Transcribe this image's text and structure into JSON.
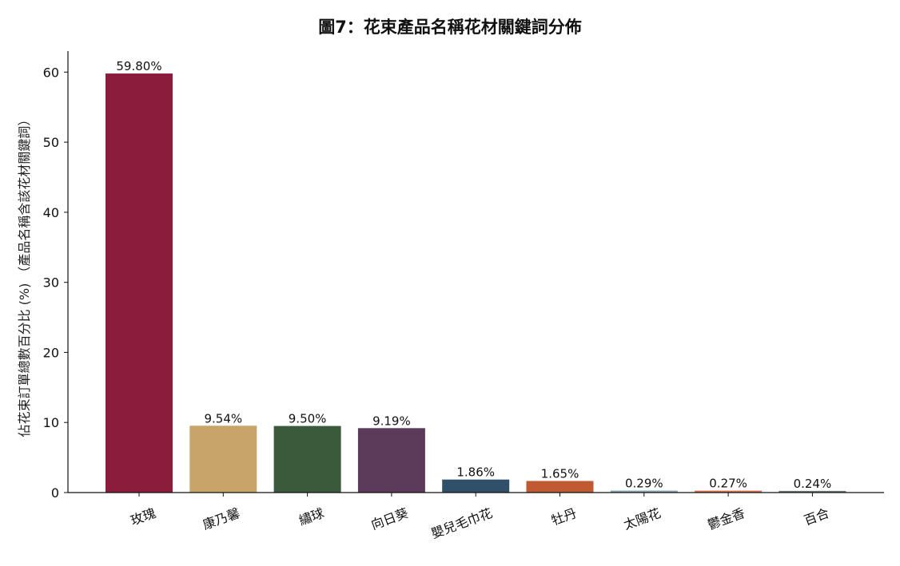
{
  "chart_data": {
    "type": "bar",
    "title": "圖7：花束產品名稱花材關鍵詞分佈",
    "xlabel": "",
    "ylabel": "佔花束訂單總數百分比 (%) （產品名稱含該花材關鍵詞）",
    "ylim": [
      0,
      63
    ],
    "yticks": [
      0,
      10,
      20,
      30,
      40,
      50,
      60
    ],
    "grid": false,
    "categories": [
      "玫瑰",
      "康乃馨",
      "繡球",
      "向日葵",
      "嬰兒毛巾花",
      "牡丹",
      "太陽花",
      "鬱金香",
      "百合"
    ],
    "values": [
      59.8,
      9.54,
      9.5,
      9.19,
      1.86,
      1.65,
      0.29,
      0.27,
      0.24
    ],
    "data_labels": [
      "59.80%",
      "9.54%",
      "9.50%",
      "9.19%",
      "1.86%",
      "1.65%",
      "0.29%",
      "0.27%",
      "0.24%"
    ],
    "colors": [
      "#8b1c3c",
      "#c9a46a",
      "#3a5a3c",
      "#5c3b5a",
      "#2f5068",
      "#c05a32",
      "#8aa7b8",
      "#d9704f",
      "#6a7f72"
    ]
  }
}
